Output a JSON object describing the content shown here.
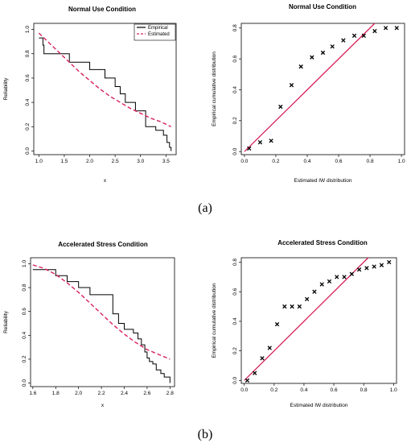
{
  "captions": {
    "a": "(a)",
    "b": "(b)"
  },
  "chart_data": [
    {
      "id": "a-left",
      "type": "line",
      "title": "Normal Use Condition",
      "xlabel": "x",
      "ylabel": "Reliability",
      "xlim": [
        0.9,
        3.7
      ],
      "ylim": [
        -0.03,
        1.05
      ],
      "xticks": [
        "1.0",
        "1.5",
        "2.0",
        "2.5",
        "3.0",
        "3.5"
      ],
      "xtick_values": [
        1.0,
        1.5,
        2.0,
        2.5,
        3.0,
        3.5
      ],
      "yticks": [
        "0.0",
        "0.2",
        "0.4",
        "0.6",
        "0.8",
        "1.0"
      ],
      "ytick_values": [
        0.0,
        0.2,
        0.4,
        0.6,
        0.8,
        1.0
      ],
      "legend_position": "top-right",
      "series": [
        {
          "name": "Empirical",
          "style": "step",
          "color": "#000000",
          "x": [
            1.0,
            1.08,
            1.08,
            1.1,
            1.1,
            1.6,
            1.6,
            2.0,
            2.0,
            2.3,
            2.3,
            2.5,
            2.5,
            2.6,
            2.6,
            2.7,
            2.7,
            2.9,
            2.9,
            3.1,
            3.1,
            3.3,
            3.3,
            3.45,
            3.45,
            3.52,
            3.52,
            3.57,
            3.57,
            3.6,
            3.6
          ],
          "y": [
            0.93,
            0.93,
            0.87,
            0.87,
            0.8,
            0.8,
            0.73,
            0.73,
            0.67,
            0.67,
            0.6,
            0.6,
            0.53,
            0.53,
            0.47,
            0.47,
            0.4,
            0.4,
            0.33,
            0.33,
            0.2,
            0.2,
            0.17,
            0.17,
            0.13,
            0.13,
            0.07,
            0.07,
            0.03,
            0.03,
            0.0
          ]
        },
        {
          "name": "Estimated",
          "style": "dashed",
          "color": "#d7235a",
          "x": [
            1.0,
            1.2,
            1.4,
            1.6,
            1.8,
            2.0,
            2.2,
            2.4,
            2.6,
            2.8,
            3.0,
            3.2,
            3.4,
            3.6
          ],
          "y": [
            0.97,
            0.89,
            0.81,
            0.73,
            0.65,
            0.58,
            0.51,
            0.45,
            0.4,
            0.35,
            0.31,
            0.27,
            0.24,
            0.2
          ]
        }
      ]
    },
    {
      "id": "a-right",
      "type": "scatter",
      "title": "Normal Use Condition",
      "xlabel": "Estimated IW distribution",
      "ylabel": "Empirical cumulative distribution",
      "xlim": [
        -0.02,
        1.02
      ],
      "ylim": [
        -0.02,
        0.83
      ],
      "xticks": [
        "0.0",
        "0.2",
        "0.4",
        "0.6",
        "0.8",
        "1.0"
      ],
      "xtick_values": [
        0.0,
        0.2,
        0.4,
        0.6,
        0.8,
        1.0
      ],
      "yticks": [
        "0.0",
        "0.2",
        "0.4",
        "0.6",
        "0.8"
      ],
      "ytick_values": [
        0.0,
        0.2,
        0.4,
        0.6,
        0.8
      ],
      "reference_line": {
        "color": "#d7235a",
        "x": [
          0.0,
          0.83
        ],
        "y": [
          0.0,
          0.83
        ]
      },
      "series": [
        {
          "marker": "x",
          "color": "#000000",
          "x": [
            0.03,
            0.1,
            0.17,
            0.23,
            0.3,
            0.36,
            0.43,
            0.5,
            0.56,
            0.63,
            0.7,
            0.76,
            0.83,
            0.9,
            0.97
          ],
          "y": [
            0.02,
            0.06,
            0.07,
            0.29,
            0.43,
            0.55,
            0.61,
            0.64,
            0.68,
            0.72,
            0.75,
            0.75,
            0.78,
            0.8,
            0.8
          ]
        }
      ]
    },
    {
      "id": "b-left",
      "type": "line",
      "title": "Accelerated Stress Condition",
      "xlabel": "x",
      "ylabel": "Reliability",
      "xlim": [
        1.58,
        2.84
      ],
      "ylim": [
        -0.03,
        1.05
      ],
      "xticks": [
        "1.6",
        "1.8",
        "2.0",
        "2.2",
        "2.4",
        "2.6",
        "2.8"
      ],
      "xtick_values": [
        1.6,
        1.8,
        2.0,
        2.2,
        2.4,
        2.6,
        2.8
      ],
      "yticks": [
        "0.0",
        "0.2",
        "0.4",
        "0.6",
        "0.8",
        "1.0"
      ],
      "ytick_values": [
        0.0,
        0.2,
        0.4,
        0.6,
        0.8,
        1.0
      ],
      "series": [
        {
          "style": "step",
          "color": "#000000",
          "x": [
            1.6,
            1.8,
            1.8,
            1.9,
            1.9,
            2.0,
            2.0,
            2.1,
            2.1,
            2.3,
            2.3,
            2.35,
            2.35,
            2.4,
            2.4,
            2.48,
            2.48,
            2.52,
            2.52,
            2.55,
            2.55,
            2.58,
            2.58,
            2.6,
            2.6,
            2.62,
            2.62,
            2.65,
            2.65,
            2.68,
            2.68,
            2.72,
            2.72,
            2.75,
            2.75,
            2.8,
            2.8
          ],
          "y": [
            0.95,
            0.95,
            0.9,
            0.9,
            0.85,
            0.85,
            0.8,
            0.8,
            0.74,
            0.74,
            0.58,
            0.58,
            0.5,
            0.5,
            0.45,
            0.45,
            0.42,
            0.42,
            0.37,
            0.37,
            0.32,
            0.32,
            0.26,
            0.26,
            0.21,
            0.21,
            0.18,
            0.18,
            0.16,
            0.16,
            0.11,
            0.11,
            0.08,
            0.08,
            0.05,
            0.05,
            0.0
          ]
        },
        {
          "style": "dashed",
          "color": "#d7235a",
          "x": [
            1.6,
            1.7,
            1.8,
            1.9,
            2.0,
            2.1,
            2.2,
            2.3,
            2.4,
            2.5,
            2.6,
            2.7,
            2.8
          ],
          "y": [
            0.99,
            0.96,
            0.91,
            0.84,
            0.76,
            0.67,
            0.58,
            0.49,
            0.41,
            0.34,
            0.28,
            0.24,
            0.2
          ]
        }
      ]
    },
    {
      "id": "b-right",
      "type": "scatter",
      "title": "Accelerated Stress Condition",
      "xlabel": "Estimated IW distribution",
      "ylabel": "Empirical cumulative distribution",
      "xlim": [
        -0.02,
        1.02
      ],
      "ylim": [
        -0.02,
        0.83
      ],
      "xticks": [
        "0.0",
        "0.2",
        "0.4",
        "0.6",
        "0.8",
        "1.0"
      ],
      "xtick_values": [
        0.0,
        0.2,
        0.4,
        0.6,
        0.8,
        1.0
      ],
      "yticks": [
        "0.0",
        "0.2",
        "0.4",
        "0.6",
        "0.8"
      ],
      "ytick_values": [
        0.0,
        0.2,
        0.4,
        0.6,
        0.8
      ],
      "reference_line": {
        "color": "#d7235a",
        "x": [
          0.0,
          0.83
        ],
        "y": [
          0.0,
          0.83
        ]
      },
      "series": [
        {
          "marker": "x",
          "color": "#000000",
          "x": [
            0.02,
            0.07,
            0.12,
            0.17,
            0.22,
            0.27,
            0.32,
            0.37,
            0.42,
            0.47,
            0.52,
            0.57,
            0.62,
            0.67,
            0.72,
            0.77,
            0.82,
            0.87,
            0.92,
            0.97
          ],
          "y": [
            0.0,
            0.05,
            0.15,
            0.22,
            0.38,
            0.5,
            0.5,
            0.5,
            0.55,
            0.6,
            0.65,
            0.67,
            0.7,
            0.7,
            0.72,
            0.75,
            0.76,
            0.77,
            0.78,
            0.8
          ]
        }
      ]
    }
  ]
}
